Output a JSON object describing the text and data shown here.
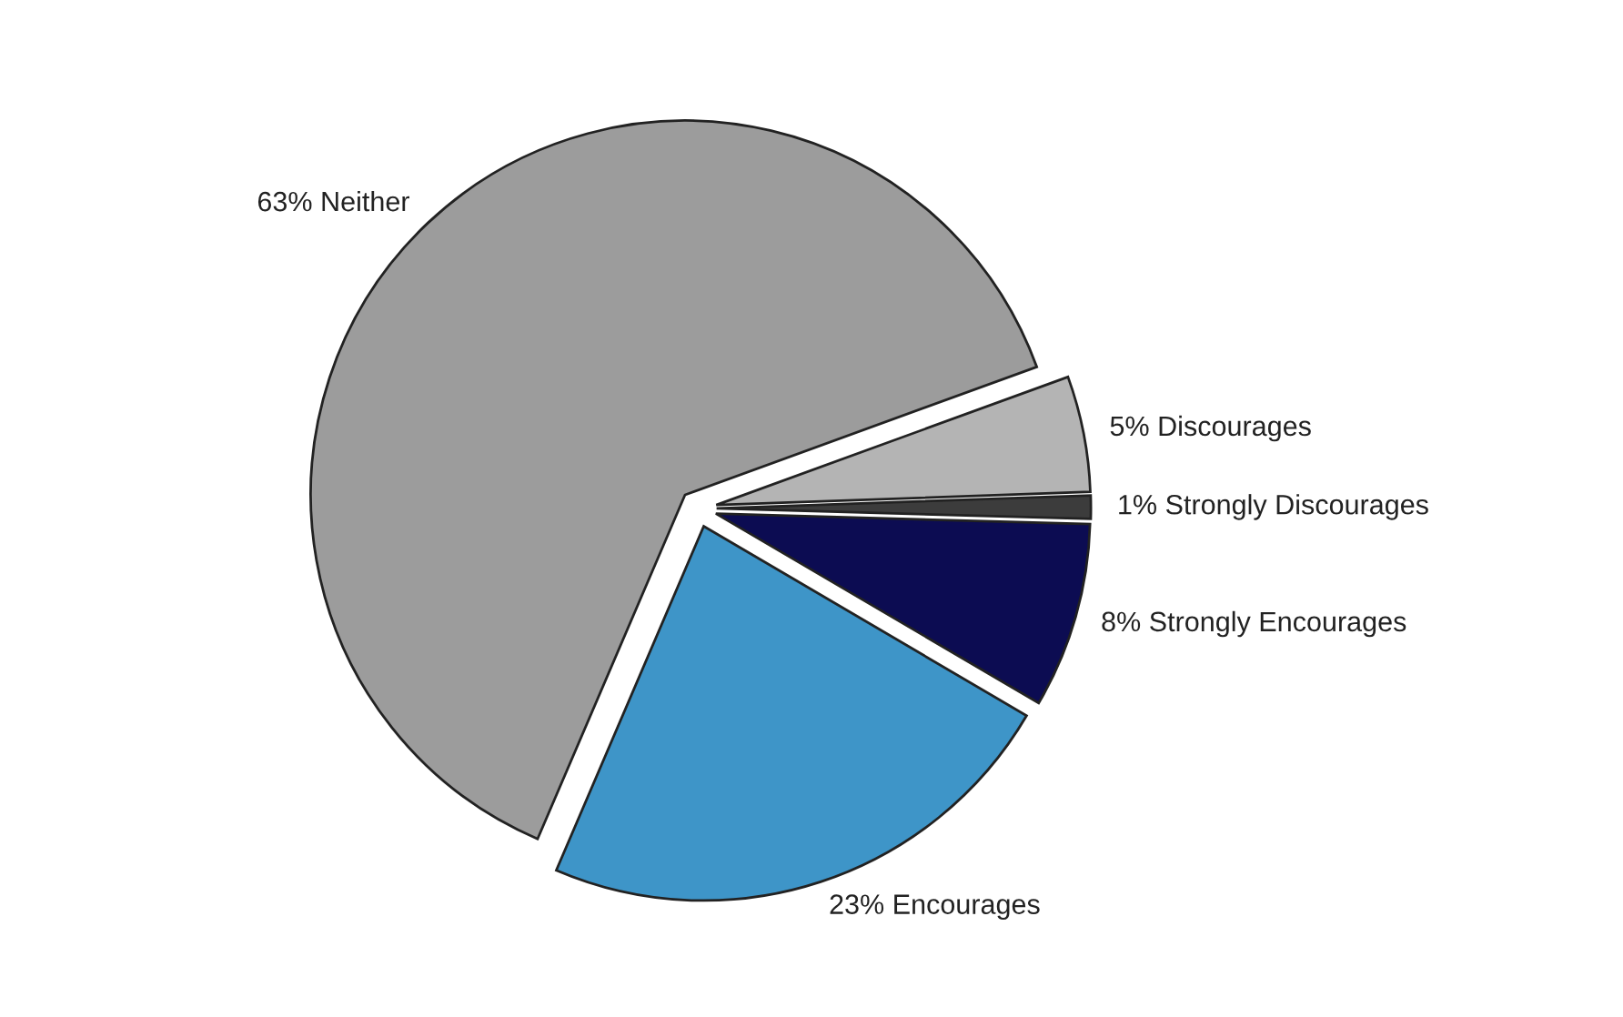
{
  "chart_data": {
    "type": "pie",
    "categories": [
      "Neither",
      "Discourages",
      "Strongly Discourages",
      "Strongly Encourages",
      "Encourages"
    ],
    "values": [
      63,
      5,
      1,
      8,
      23
    ],
    "value_labels": [
      "63%",
      "5%",
      "1%",
      "8%",
      "23%"
    ],
    "colors": [
      "#9c9c9c",
      "#b4b4b4",
      "#3c3c3c",
      "#0c0c52",
      "#3e95c8"
    ]
  }
}
